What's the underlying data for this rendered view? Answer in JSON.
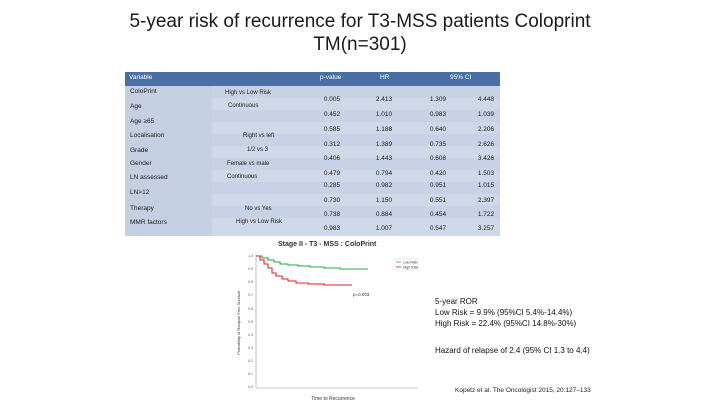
{
  "title_line1": "5-year risk of recurrence for T3-MSS patients Coloprint",
  "title_line2": "TM(n=301)",
  "table": {
    "headers": {
      "variable": "Variable",
      "pvalue": "p-value",
      "hr": "HR",
      "ci": "95% CI"
    },
    "variables": [
      "ColoPrint",
      "Age",
      "Age ≥65",
      "Localisation",
      "Grade",
      "Gender",
      "LN assessed",
      "LN>12",
      "Therapy",
      "MMR factors"
    ],
    "comparisons": [
      "High vs Low Risk",
      "Continuous",
      "Right vs left",
      "1/2 vs 3",
      "Female vs male",
      "Continuous",
      "No vs Yes",
      "High vs Low Risk"
    ],
    "rows": [
      {
        "p": "0.005",
        "hr": "2.413",
        "lo": "1.309",
        "hi": "4.448"
      },
      {
        "p": "0.452",
        "hr": "1.010",
        "lo": "0.983",
        "hi": "1.039"
      },
      {
        "p": "0.585",
        "hr": "1.188",
        "lo": "0.640",
        "hi": "2.206"
      },
      {
        "p": "0.312",
        "hr": "1.389",
        "lo": "0.735",
        "hi": "2.626"
      },
      {
        "p": "0.406",
        "hr": "1.443",
        "lo": "0.608",
        "hi": "3.426"
      },
      {
        "p": "0.479",
        "hr": "0.794",
        "lo": "0.420",
        "hi": "1.503"
      },
      {
        "p": "0.285",
        "hr": "0.982",
        "lo": "0.951",
        "hi": "1.015"
      },
      {
        "p": "0.730",
        "hr": "1.150",
        "lo": "0.551",
        "hi": "2.397"
      },
      {
        "p": "0.738",
        "hr": "0.884",
        "lo": "0.454",
        "hi": "1.722"
      },
      {
        "p": "0.983",
        "hr": "1.007",
        "lo": "0.547",
        "hi": "3.257"
      }
    ]
  },
  "km": {
    "title": "Stage II - T3 - MSS : ColoPrint",
    "ylabel": "Probability of Relapse Free Survival",
    "xlabel": "Time to Recurrence",
    "pvalue": "p=0.003",
    "legend_low": "Low Risk",
    "legend_high": "High Risk",
    "low_color": "#22aa44",
    "high_color": "#dd2222",
    "yticks": [
      "1.0",
      "0.9",
      "0.8",
      "0.7",
      "0.6",
      "0.5",
      "0.4",
      "0.3",
      "0.2",
      "0.1",
      "0.0"
    ]
  },
  "ror": {
    "title": "5-year ROR",
    "low": "Low Risk = 9.9% (95%CI 5.4%-14.4%)",
    "high": "High Risk = 22.4% (95%CI 14.8%-30%)"
  },
  "hazard": "Hazard of relapse of 2.4 (95% CI 1.3 to 4.4)",
  "citation": "Kopetz et al. The Oncologist 2015, 20:127–133"
}
